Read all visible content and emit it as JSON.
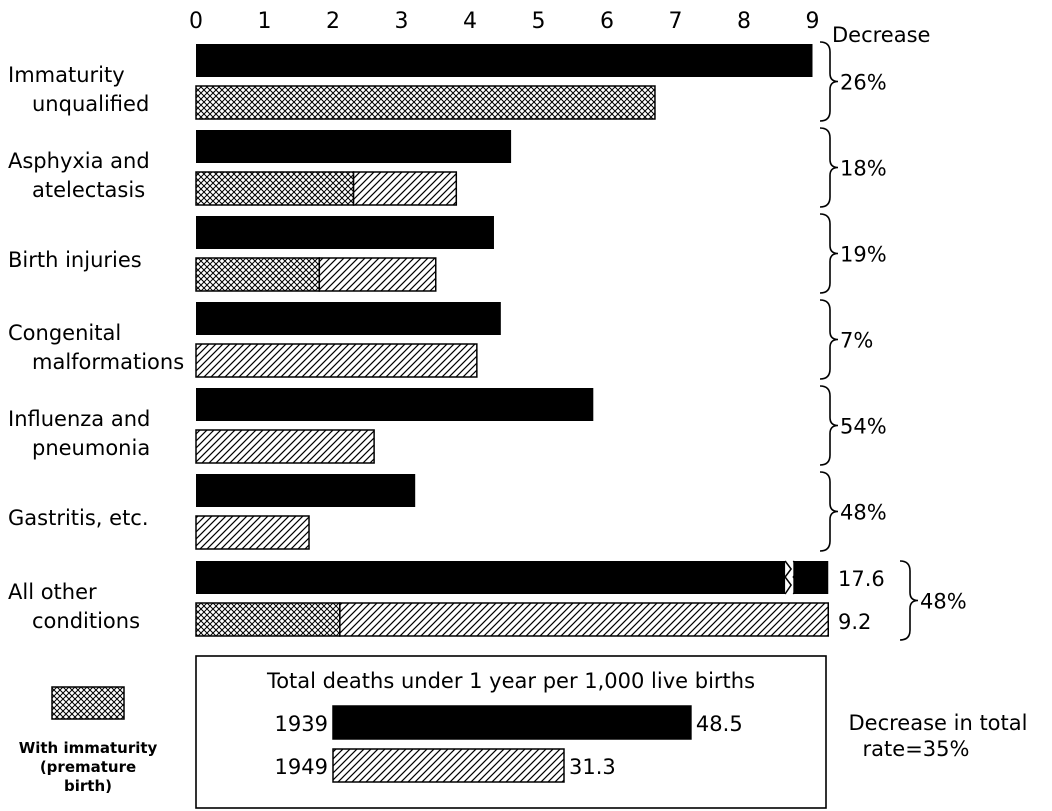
{
  "chart_data": {
    "type": "bar",
    "orientation": "horizontal",
    "x_ticks": [
      "0",
      "1",
      "2",
      "3",
      "4",
      "5",
      "6",
      "7",
      "8",
      "9"
    ],
    "xlim": [
      0,
      9
    ],
    "decrease_header": "Decrease",
    "categories": [
      {
        "label_lines": [
          "Immaturity",
          "unqualified"
        ],
        "bar1939": 9.0,
        "bar1949": 6.7,
        "immaturity_1949": 6.7,
        "decrease": "26%"
      },
      {
        "label_lines": [
          "Asphyxia and",
          "atelectasis"
        ],
        "bar1939": 4.6,
        "bar1949": 3.8,
        "immaturity_1949": 2.3,
        "decrease": "18%"
      },
      {
        "label_lines": [
          "Birth injuries"
        ],
        "bar1939": 4.35,
        "bar1949": 3.5,
        "immaturity_1949": 1.8,
        "decrease": "19%"
      },
      {
        "label_lines": [
          "Congenital",
          "malformations"
        ],
        "bar1939": 4.45,
        "bar1949": 4.1,
        "immaturity_1949": 0,
        "decrease": "7%"
      },
      {
        "label_lines": [
          "Influenza and",
          "pneumonia"
        ],
        "bar1939": 5.8,
        "bar1949": 2.6,
        "immaturity_1949": 0,
        "decrease": "54%"
      },
      {
        "label_lines": [
          "Gastritis, etc."
        ],
        "bar1939": 3.2,
        "bar1949": 1.65,
        "immaturity_1949": 0,
        "decrease": "48%"
      },
      {
        "label_lines": [
          "All other",
          "conditions"
        ],
        "bar1939": 17.6,
        "bar1949": 9.2,
        "immaturity_1949": 2.1,
        "decrease": "48%",
        "broken_axis": true,
        "value_label_1939": "17.6",
        "value_label_1949": "9.2"
      }
    ],
    "legend": {
      "label_lines": [
        "With immaturity",
        "(premature",
        "birth)"
      ]
    },
    "totals": {
      "title": "Total deaths under 1 year per 1,000 live births",
      "rows": [
        {
          "year": "1939",
          "value": 48.5,
          "value_label": "48.5"
        },
        {
          "year": "1949",
          "value": 31.3,
          "value_label": "31.3"
        }
      ],
      "decrease_note_lines": [
        "Decrease in total",
        "rate=35%"
      ]
    }
  }
}
